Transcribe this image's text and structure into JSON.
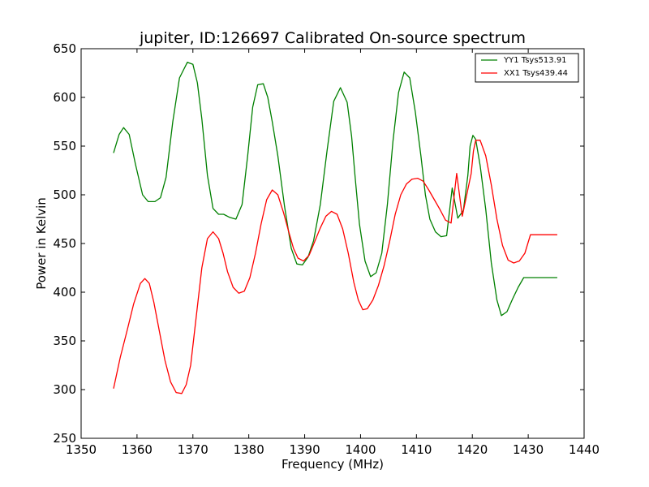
{
  "chart_data": {
    "type": "line",
    "title": "jupiter, ID:126697 Calibrated On-source spectrum",
    "xlabel": "Frequency (MHz)",
    "ylabel": "Power in Kelvin",
    "xlim": [
      1350,
      1440
    ],
    "ylim": [
      250,
      650
    ],
    "xticks": [
      1350,
      1360,
      1370,
      1380,
      1390,
      1400,
      1410,
      1420,
      1430,
      1440
    ],
    "yticks": [
      250,
      300,
      350,
      400,
      450,
      500,
      550,
      600,
      650
    ],
    "grid": false,
    "legend_position": "top-right",
    "series": [
      {
        "name": "YY1 Tsys513.91",
        "color": "#008000",
        "x": [
          1355.8,
          1356.8,
          1357.6,
          1358.6,
          1359.7,
          1361.0,
          1362.0,
          1363.2,
          1364.2,
          1365.2,
          1366.4,
          1367.6,
          1369.0,
          1370.0,
          1370.8,
          1371.6,
          1372.6,
          1373.6,
          1374.6,
          1375.5,
          1376.5,
          1377.7,
          1378.8,
          1379.8,
          1380.7,
          1381.6,
          1382.6,
          1383.4,
          1384.2,
          1385.2,
          1386.4,
          1387.6,
          1388.6,
          1389.6,
          1390.6,
          1391.6,
          1392.8,
          1394.0,
          1395.2,
          1396.4,
          1397.6,
          1398.4,
          1399.0,
          1399.8,
          1400.8,
          1401.8,
          1402.8,
          1403.8,
          1404.8,
          1405.8,
          1406.8,
          1407.8,
          1408.8,
          1409.8,
          1410.8,
          1411.6,
          1412.4,
          1413.4,
          1414.4,
          1415.4,
          1416.4,
          1417.4,
          1418.4,
          1419.2,
          1419.6,
          1420.1,
          1420.6,
          1421.4,
          1422.4,
          1423.4,
          1424.4,
          1425.2,
          1426.2,
          1427.2,
          1428.2,
          1429.2,
          1430.2,
          1431.2,
          1432.2,
          1433.2,
          1434.2,
          1435.2
        ],
        "y": [
          543,
          562,
          569,
          562,
          532,
          500,
          493,
          493,
          497,
          518,
          575,
          620,
          636,
          634,
          615,
          578,
          520,
          486,
          480,
          480,
          477,
          475,
          490,
          540,
          590,
          613,
          614,
          600,
          575,
          540,
          488,
          445,
          429,
          428,
          436,
          453,
          490,
          545,
          596,
          610,
          595,
          560,
          520,
          470,
          432,
          416,
          420,
          440,
          490,
          555,
          605,
          626,
          620,
          585,
          540,
          500,
          475,
          462,
          457,
          458,
          507,
          476,
          484,
          520,
          550,
          561,
          557,
          530,
          485,
          430,
          392,
          376,
          380,
          393,
          405,
          415,
          415,
          415,
          415,
          415,
          415,
          415
        ],
        "labels_hidden": true
      },
      {
        "name": "XX1 Tsys439.44",
        "color": "#ff0000",
        "x": [
          1355.8,
          1357.0,
          1358.2,
          1359.4,
          1360.6,
          1361.4,
          1362.2,
          1363.0,
          1364.0,
          1365.0,
          1366.0,
          1367.0,
          1368.0,
          1368.8,
          1369.6,
          1370.6,
          1371.6,
          1372.6,
          1373.6,
          1374.6,
          1375.4,
          1376.2,
          1377.2,
          1378.2,
          1379.2,
          1380.2,
          1381.2,
          1382.2,
          1383.2,
          1384.2,
          1385.2,
          1386.2,
          1387.2,
          1388.0,
          1388.8,
          1389.8,
          1390.8,
          1391.8,
          1392.8,
          1393.8,
          1394.8,
          1395.8,
          1396.8,
          1397.8,
          1398.8,
          1399.6,
          1400.4,
          1401.2,
          1402.2,
          1403.2,
          1404.2,
          1405.2,
          1406.2,
          1407.2,
          1408.2,
          1409.2,
          1410.2,
          1411.2,
          1412.2,
          1413.2,
          1414.2,
          1415.2,
          1416.2,
          1417.2,
          1418.2,
          1419.0,
          1419.8,
          1420.2,
          1420.6,
          1421.4,
          1422.4,
          1423.4,
          1424.4,
          1425.4,
          1426.4,
          1427.4,
          1428.4,
          1429.4,
          1430.4,
          1431.4,
          1432.4,
          1433.4,
          1434.2,
          1435.2
        ],
        "y": [
          301,
          333,
          360,
          388,
          409,
          414,
          409,
          390,
          360,
          330,
          308,
          297,
          296,
          305,
          325,
          375,
          425,
          455,
          462,
          455,
          440,
          421,
          405,
          399,
          401,
          415,
          440,
          470,
          495,
          505,
          500,
          482,
          461,
          445,
          435,
          432,
          438,
          452,
          466,
          478,
          483,
          480,
          465,
          440,
          410,
          392,
          382,
          383,
          392,
          407,
          427,
          452,
          480,
          500,
          511,
          516,
          517,
          514,
          505,
          495,
          485,
          474,
          471,
          522,
          478,
          500,
          522,
          545,
          556,
          556,
          540,
          510,
          475,
          448,
          433,
          430,
          432,
          440,
          459,
          459,
          459,
          459,
          459,
          459
        ],
        "labels_hidden": true
      }
    ]
  }
}
